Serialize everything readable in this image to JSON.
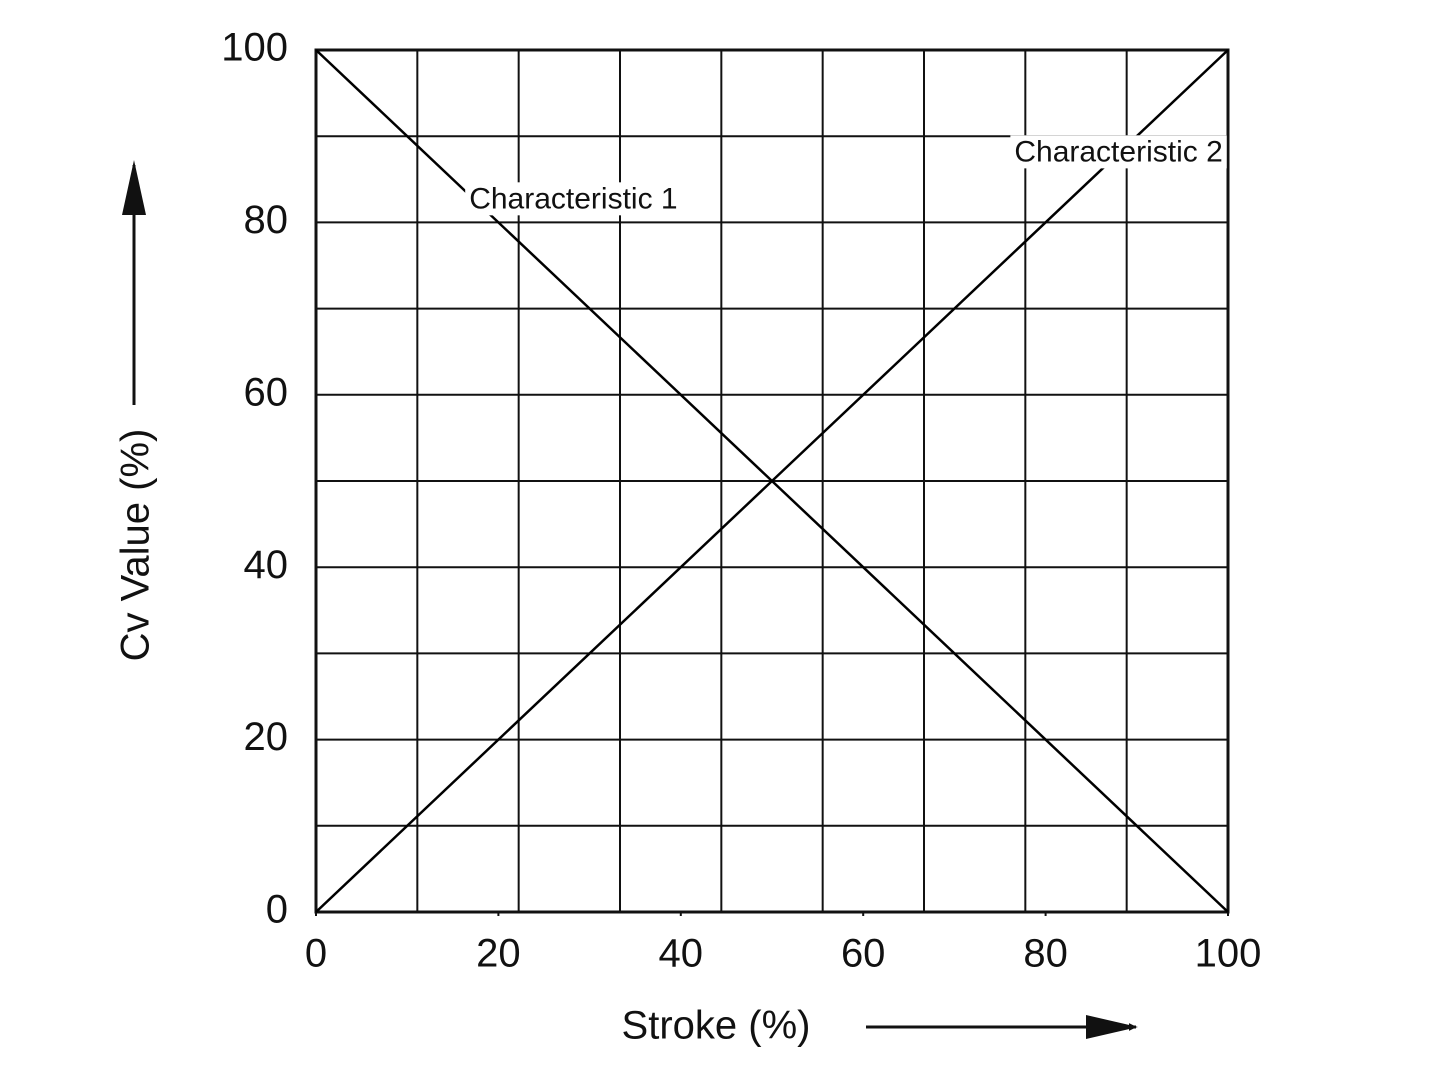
{
  "chart_data": {
    "type": "line",
    "x_label": "Stroke (%)",
    "y_label": "Cv Value (%)",
    "x": [
      0,
      100
    ],
    "series": [
      {
        "name": "Characteristic 1",
        "color": "#000000",
        "values": [
          100,
          0
        ]
      },
      {
        "name": "Characteristic 2",
        "color": "#000000",
        "values": [
          0,
          100
        ]
      }
    ],
    "xlim": [
      0,
      100
    ],
    "ylim": [
      0,
      100
    ],
    "xticks": [
      0,
      20,
      40,
      60,
      80,
      100
    ],
    "yticks": [
      0,
      20,
      40,
      60,
      80,
      100
    ],
    "grid": true
  }
}
